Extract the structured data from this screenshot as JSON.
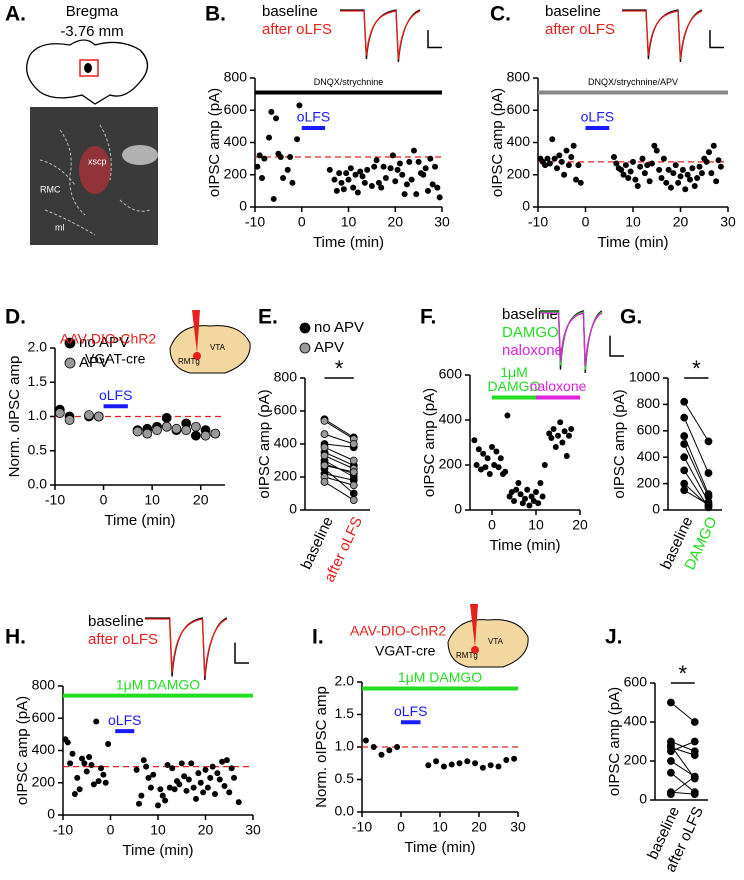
{
  "figure": {
    "panel_a": {
      "label": "A.",
      "bregma": "Bregma",
      "level": "-3.76 mm",
      "regions": [
        "xscp",
        "RMC",
        "ml"
      ]
    }
  },
  "chart_data": [
    {
      "type": "scatter",
      "label": "B.",
      "ylabel": "oIPSC amp (pA)",
      "xlabel": "Time (min)",
      "xlim": [
        -10,
        30
      ],
      "xticks": [
        -10,
        0,
        10,
        20,
        30
      ],
      "ylim": [
        0,
        800
      ],
      "yticks": [
        0,
        200,
        400,
        600,
        800
      ],
      "traces": [
        {
          "name": "baseline",
          "color": "#000000"
        },
        {
          "name": "after oLFS",
          "color": "#e8201c"
        }
      ],
      "spans": [
        {
          "label": "DNQX/strychnine",
          "color": "#000000",
          "x": [
            -10,
            30
          ],
          "level": 710
        },
        {
          "label": "oLFS",
          "color": "#1a1aff",
          "x": [
            0,
            5
          ],
          "level": 490
        }
      ],
      "reference": 310,
      "reference_color": "#e8201c",
      "x": [
        -9.5,
        -9,
        -8.5,
        -8,
        -7,
        -6.5,
        -6,
        -5.5,
        -5,
        -4.5,
        -4,
        -3,
        -2.5,
        -2,
        -1,
        -0.5,
        6,
        7,
        7.5,
        8,
        8.5,
        9,
        9.5,
        10,
        10.5,
        11,
        11.5,
        12,
        12.5,
        13,
        13.5,
        14,
        15,
        15.5,
        16,
        16.5,
        17,
        17.5,
        18,
        19,
        19.5,
        20,
        20.5,
        21,
        21.5,
        22,
        22.5,
        23,
        23.5,
        24,
        24.5,
        25,
        25.5,
        26,
        26.5,
        27,
        27.5,
        28,
        28.5,
        29,
        29.5
      ],
      "series": [
        {
          "color": "#000000",
          "values": [
            250,
            320,
            180,
            300,
            430,
            590,
            50,
            550,
            330,
            310,
            180,
            230,
            310,
            150,
            420,
            630,
            230,
            170,
            100,
            210,
            150,
            110,
            210,
            170,
            240,
            120,
            200,
            90,
            220,
            190,
            150,
            230,
            130,
            250,
            290,
            150,
            120,
            250,
            180,
            240,
            320,
            160,
            230,
            270,
            200,
            80,
            140,
            280,
            170,
            350,
            80,
            280,
            210,
            200,
            240,
            100,
            300,
            140,
            250,
            120,
            60
          ]
        }
      ]
    },
    {
      "type": "scatter",
      "label": "C.",
      "ylabel": "oIPSC amp (pA)",
      "xlabel": "Time (min)",
      "xlim": [
        -10,
        30
      ],
      "xticks": [
        -10,
        0,
        10,
        20,
        30
      ],
      "ylim": [
        0,
        800
      ],
      "yticks": [
        0,
        200,
        400,
        600,
        800
      ],
      "traces": [
        {
          "name": "baseline",
          "color": "#000000"
        },
        {
          "name": "after oLFS",
          "color": "#e8201c"
        }
      ],
      "spans": [
        {
          "label": "DNQX/strychnine/APV",
          "color": "#888888",
          "x": [
            -10,
            30
          ],
          "level": 710
        },
        {
          "label": "oLFS",
          "color": "#1a1aff",
          "x": [
            0,
            5
          ],
          "level": 490
        }
      ],
      "reference": 280,
      "reference_color": "#e8201c",
      "x": [
        -9.5,
        -9,
        -8.5,
        -8,
        -7.5,
        -7,
        -6.5,
        -6,
        -5.5,
        -5,
        -4.5,
        -4,
        -3.5,
        -3,
        -2.5,
        -2,
        -1.5,
        -1,
        6,
        6.5,
        7,
        7.5,
        8,
        8.5,
        9,
        9.5,
        10,
        10.5,
        11,
        11.5,
        12,
        12.5,
        13,
        13.5,
        14,
        14.5,
        15,
        15.5,
        16,
        16.5,
        17,
        17.5,
        18,
        18.5,
        19,
        19.5,
        20,
        20.5,
        21,
        21.5,
        22,
        22.5,
        23,
        23.5,
        24,
        24.5,
        25,
        25.5,
        26,
        26.5,
        27,
        27.5,
        28,
        28.5
      ],
      "series": [
        {
          "color": "#000000",
          "values": [
            300,
            280,
            260,
            300,
            270,
            420,
            300,
            240,
            320,
            280,
            200,
            350,
            260,
            310,
            380,
            170,
            260,
            150,
            310,
            270,
            240,
            230,
            200,
            260,
            180,
            220,
            280,
            170,
            130,
            250,
            300,
            210,
            260,
            160,
            270,
            380,
            350,
            230,
            180,
            300,
            150,
            230,
            120,
            210,
            260,
            150,
            190,
            230,
            110,
            200,
            170,
            240,
            130,
            180,
            250,
            210,
            300,
            280,
            340,
            210,
            380,
            160,
            290,
            250
          ]
        }
      ]
    },
    {
      "type": "scatter",
      "label": "D.",
      "ylabel": "Norm. oIPSC amp",
      "xlabel": "Time (min)",
      "xlim": [
        -10,
        25
      ],
      "xticks": [
        -10,
        0,
        10,
        20
      ],
      "ylim": [
        0,
        2
      ],
      "yticks": [
        {
          "value": 0,
          "label": "0.0"
        },
        0.5,
        {
          "value": 1,
          "label": "1.0"
        },
        1.5,
        {
          "value": 2,
          "label": "2.0"
        }
      ],
      "inset": {
        "virus": "AAV-DIO-ChR2",
        "mouse": "VGAT-cre",
        "regions": [
          "RMTg",
          "VTA"
        ]
      },
      "spans": [
        {
          "label": "oLFS",
          "color": "#1a1aff",
          "x": [
            0,
            5
          ],
          "level": 1.15
        }
      ],
      "reference": 1,
      "reference_color": "#e8201c",
      "x": [
        -9,
        -7,
        -3,
        -1,
        7,
        9,
        11,
        13,
        15,
        17,
        19,
        21,
        23
      ],
      "series": [
        {
          "name": "no APV",
          "color": "#000000",
          "values": [
            1.1,
            1.0,
            1.0,
            1.0,
            0.8,
            0.82,
            0.85,
            0.98,
            0.8,
            0.9,
            0.72,
            0.8,
            0.75
          ]
        },
        {
          "name": "APV",
          "color": "#999999",
          "values": [
            1.05,
            0.95,
            1.02,
            1.0,
            0.78,
            0.75,
            0.8,
            0.85,
            0.82,
            0.8,
            0.85,
            0.72,
            0.75
          ]
        }
      ]
    },
    {
      "type": "paired",
      "label": "E.",
      "ylabel": "oIPSC amp (pA)",
      "categories": [
        "baseline",
        "after oLFS"
      ],
      "category_colors": [
        "#000000",
        "#e8201c"
      ],
      "ylim": [
        0,
        800
      ],
      "yticks": [
        0,
        200,
        400,
        600,
        800
      ],
      "significance": "*",
      "series": [
        {
          "name": "no APV",
          "color": "#000000",
          "values": [
            [
              550,
              440
            ],
            [
              400,
              380
            ],
            [
              350,
              270
            ],
            [
              300,
              200
            ],
            [
              280,
              220
            ],
            [
              250,
              100
            ],
            [
              220,
              180
            ]
          ]
        },
        {
          "name": "APV",
          "color": "#999999",
          "values": [
            [
              540,
              430
            ],
            [
              460,
              400
            ],
            [
              380,
              300
            ],
            [
              330,
              250
            ],
            [
              270,
              230
            ],
            [
              200,
              150
            ],
            [
              170,
              60
            ]
          ]
        }
      ]
    },
    {
      "type": "scatter",
      "label": "F.",
      "ylabel": "oIPSC amp (pA)",
      "xlabel": "Time (min)",
      "xlim": [
        -5,
        20
      ],
      "xticks": [
        0,
        10,
        20
      ],
      "ylim": [
        0,
        600
      ],
      "yticks": [
        0,
        200,
        400,
        600
      ],
      "traces": [
        {
          "name": "baseline",
          "color": "#000000"
        },
        {
          "name": "DAMGO",
          "color": "#22dd22"
        },
        {
          "name": "naloxone",
          "color": "#dd22dd"
        }
      ],
      "spans": [
        {
          "label": [
            "1μM",
            "DAMGO"
          ],
          "color": "#22dd22",
          "x": [
            0,
            10
          ],
          "level": 500
        },
        {
          "label": [
            "naloxone"
          ],
          "color": "#dd22dd",
          "x": [
            10,
            20
          ],
          "level": 500
        }
      ],
      "x": [
        -4,
        -3.5,
        -3,
        -2.5,
        -2,
        -1.5,
        -1,
        -0.5,
        0,
        0.5,
        1,
        1.5,
        2,
        2.5,
        3,
        3.5,
        4,
        4.5,
        5,
        5.5,
        6,
        6.5,
        7,
        7.5,
        8,
        8.5,
        9,
        9.5,
        10,
        10.5,
        11,
        11.5,
        12,
        13,
        13.5,
        14,
        14.5,
        15,
        15.5,
        16,
        16.5,
        17,
        17.5,
        18
      ],
      "series": [
        {
          "color": "#000000",
          "values": [
            310,
            200,
            270,
            180,
            250,
            190,
            230,
            160,
            280,
            200,
            260,
            190,
            230,
            160,
            170,
            420,
            60,
            80,
            40,
            90,
            120,
            70,
            30,
            50,
            90,
            20,
            60,
            40,
            80,
            30,
            120,
            60,
            200,
            340,
            320,
            360,
            280,
            330,
            390,
            300,
            350,
            240,
            330,
            360
          ]
        }
      ]
    },
    {
      "type": "paired",
      "label": "G.",
      "ylabel": "oIPSC amp (pA)",
      "categories": [
        "baseline",
        "DAMGO"
      ],
      "category_colors": [
        "#000000",
        "#22dd22"
      ],
      "ylim": [
        0,
        1000
      ],
      "yticks": [
        0,
        200,
        400,
        600,
        800,
        1000
      ],
      "significance": "*",
      "series": [
        {
          "color": "#000000",
          "values": [
            [
              820,
              520
            ],
            [
              700,
              280
            ],
            [
              560,
              120
            ],
            [
              500,
              100
            ],
            [
              400,
              60
            ],
            [
              300,
              20
            ],
            [
              200,
              30
            ],
            [
              150,
              40
            ]
          ]
        }
      ]
    },
    {
      "type": "scatter",
      "label": "H.",
      "ylabel": "oIPSC amp (pA)",
      "xlabel": "Time (min)",
      "xlim": [
        -10,
        30
      ],
      "xticks": [
        -10,
        0,
        10,
        20,
        30
      ],
      "ylim": [
        0,
        800
      ],
      "yticks": [
        0,
        200,
        400,
        600,
        800
      ],
      "traces": [
        {
          "name": "baseline",
          "color": "#000000"
        },
        {
          "name": "after oLFS",
          "color": "#e8201c"
        }
      ],
      "spans": [
        {
          "label": [
            "1μM DAMGO"
          ],
          "color": "#22dd22",
          "x": [
            -10,
            30
          ],
          "level": 740
        },
        {
          "label": [
            "oLFS"
          ],
          "color": "#1a1aff",
          "x": [
            1,
            5
          ],
          "level": 520
        }
      ],
      "reference": 300,
      "reference_color": "#e8201c",
      "x": [
        -9.5,
        -9,
        -8.5,
        -8,
        -7.5,
        -7,
        -6.5,
        -6,
        -5.5,
        -5,
        -4.5,
        -4,
        -3.5,
        -3,
        -2.5,
        -2,
        -1.5,
        -1,
        -0.5,
        5.5,
        6,
        6.5,
        7,
        7.5,
        8,
        8.5,
        9,
        10,
        10.5,
        11,
        11.5,
        12,
        12.5,
        13,
        13.5,
        14,
        14.5,
        15,
        15.5,
        16,
        16.5,
        17,
        17.5,
        18,
        18.5,
        19,
        19.5,
        20,
        20.5,
        21,
        21.5,
        22,
        22.5,
        23,
        23.5,
        24,
        24.5,
        25,
        25.5,
        26,
        27
      ],
      "series": [
        {
          "color": "#000000",
          "values": [
            470,
            450,
            320,
            380,
            130,
            230,
            160,
            350,
            320,
            270,
            360,
            310,
            190,
            580,
            210,
            290,
            250,
            200,
            440,
            280,
            70,
            120,
            340,
            300,
            230,
            170,
            250,
            60,
            160,
            120,
            90,
            310,
            170,
            290,
            160,
            210,
            190,
            320,
            240,
            150,
            220,
            320,
            170,
            100,
            260,
            200,
            140,
            280,
            170,
            230,
            300,
            130,
            260,
            220,
            330,
            180,
            340,
            140,
            290,
            230,
            80
          ]
        }
      ]
    },
    {
      "type": "scatter",
      "label": "I.",
      "ylabel": "Norm. oIPSC amp",
      "xlabel": "Time (min)",
      "xlim": [
        -10,
        30
      ],
      "xticks": [
        -10,
        0,
        10,
        20,
        30
      ],
      "ylim": [
        0,
        2
      ],
      "yticks": [
        {
          "value": 0,
          "label": "0.0"
        },
        0.5,
        {
          "value": 1,
          "label": "1.0"
        },
        1.5,
        {
          "value": 2,
          "label": "2.0"
        }
      ],
      "inset": {
        "virus": "AAV-DIO-ChR2",
        "mouse": "VGAT-cre",
        "regions": [
          "RMTg",
          "VTA"
        ]
      },
      "spans": [
        {
          "label": [
            "1μM DAMGO"
          ],
          "color": "#22dd22",
          "x": [
            -10,
            30
          ],
          "level": 1.9
        },
        {
          "label": [
            "oLFS"
          ],
          "color": "#1a1aff",
          "x": [
            0,
            5
          ],
          "level": 1.38
        }
      ],
      "reference": 1,
      "reference_color": "#e8201c",
      "x": [
        -9,
        -7,
        -5,
        -3,
        -1,
        7,
        9,
        11,
        13,
        15,
        17,
        19,
        21,
        23,
        25,
        27,
        29
      ],
      "series": [
        {
          "color": "#000000",
          "values": [
            1.1,
            1.0,
            0.88,
            0.95,
            1.0,
            0.72,
            0.78,
            0.7,
            0.73,
            0.75,
            0.78,
            0.75,
            0.68,
            0.72,
            0.7,
            0.8,
            0.82
          ]
        }
      ]
    },
    {
      "type": "paired",
      "label": "J.",
      "ylabel": "oIPSC amp (pA)",
      "categories": [
        "baseline",
        "after oLFS"
      ],
      "category_colors": [
        "#000000",
        "#000000"
      ],
      "ylim": [
        0,
        600
      ],
      "yticks": [
        0,
        200,
        400,
        600
      ],
      "significance": "*",
      "series": [
        {
          "color": "#000000",
          "values": [
            [
              500,
              400
            ],
            [
              300,
              250
            ],
            [
              280,
              110
            ],
            [
              270,
              230
            ],
            [
              250,
              300
            ],
            [
              200,
              120
            ],
            [
              140,
              40
            ],
            [
              40,
              30
            ],
            [
              30,
              120
            ]
          ]
        }
      ]
    }
  ]
}
